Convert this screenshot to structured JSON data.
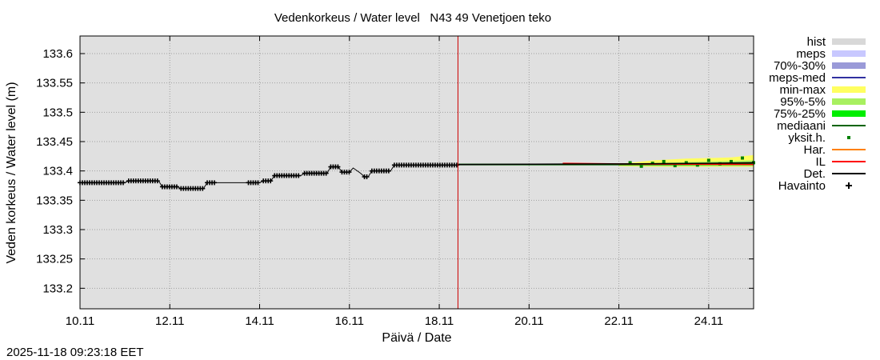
{
  "chart_data": {
    "type": "line",
    "title": "Vedenkorkeus / Water level   N43 49 Venetjoen teko",
    "xlabel": "Päivä / Date",
    "ylabel": "Veden korkeus / Water level (m)",
    "x_range": [
      "2025-11-10",
      "2025-11-25"
    ],
    "ylim": [
      133.165,
      133.63
    ],
    "x_ticks": [
      "10.11",
      "12.11",
      "14.11",
      "16.11",
      "18.11",
      "20.11",
      "22.11",
      "24.11"
    ],
    "y_ticks": [
      "133.6",
      "133.55",
      "133.5",
      "133.45",
      "133.4",
      "133.35",
      "133.3",
      "133.25",
      "133.2"
    ],
    "grid": true,
    "background_color": "#e0e0e0",
    "forecast_start_line": {
      "x": "2025-11-18 10:00",
      "color": "#cc0000"
    },
    "legend_position": "right",
    "legend": [
      {
        "label": "hist",
        "color": "#d8d8d8",
        "style": "band"
      },
      {
        "label": "meps",
        "color": "#c8c8ff",
        "style": "band"
      },
      {
        "label": "70%-30%",
        "color": "#9a9ad8",
        "style": "band"
      },
      {
        "label": "meps-med",
        "color": "#3030a0",
        "style": "line"
      },
      {
        "label": "min-max",
        "color": "#ffff60",
        "style": "band"
      },
      {
        "label": "95%-5%",
        "color": "#a8f060",
        "style": "band"
      },
      {
        "label": "75%-25%",
        "color": "#00ee00",
        "style": "band"
      },
      {
        "label": "mediaani",
        "color": "#006400",
        "style": "line"
      },
      {
        "label": "yksit.h.",
        "color": "#008000",
        "style": "dot"
      },
      {
        "label": "Har.",
        "color": "#ff8000",
        "style": "line"
      },
      {
        "label": "IL",
        "color": "#ff0000",
        "style": "line"
      },
      {
        "label": "Det.",
        "color": "#000000",
        "style": "line"
      },
      {
        "label": "Havainto",
        "color": "#000000",
        "style": "cross"
      }
    ],
    "series": [
      {
        "name": "Havainto",
        "type": "observed",
        "points": [
          [
            "2025-11-10 00:00",
            133.38
          ],
          [
            "2025-11-11 00:00",
            133.38
          ],
          [
            "2025-11-11 02:00",
            133.383
          ],
          [
            "2025-11-11 18:00",
            133.383
          ],
          [
            "2025-11-11 20:00",
            133.373
          ],
          [
            "2025-11-12 04:00",
            133.373
          ],
          [
            "2025-11-12 06:00",
            133.37
          ],
          [
            "2025-11-12 18:00",
            133.37
          ],
          [
            "2025-11-12 20:00",
            133.38
          ],
          [
            "2025-11-13 00:00",
            133.38
          ],
          [
            "2025-11-13 18:00",
            133.38
          ],
          [
            "2025-11-14 00:00",
            133.38
          ],
          [
            "2025-11-14 02:00",
            133.383
          ],
          [
            "2025-11-14 06:00",
            133.383
          ],
          [
            "2025-11-14 08:00",
            133.392
          ],
          [
            "2025-11-14 22:00",
            133.392
          ],
          [
            "2025-11-15 00:00",
            133.396
          ],
          [
            "2025-11-15 12:00",
            133.396
          ],
          [
            "2025-11-15 14:00",
            133.407
          ],
          [
            "2025-11-15 18:00",
            133.407
          ],
          [
            "2025-11-15 20:00",
            133.398
          ],
          [
            "2025-11-16 00:00",
            133.398
          ],
          [
            "2025-11-16 02:00",
            133.405
          ],
          [
            "2025-11-16 06:00",
            133.396
          ],
          [
            "2025-11-16 08:00",
            133.39
          ],
          [
            "2025-11-16 10:00",
            133.39
          ],
          [
            "2025-11-16 12:00",
            133.4
          ],
          [
            "2025-11-16 22:00",
            133.4
          ],
          [
            "2025-11-17 00:00",
            133.41
          ],
          [
            "2025-11-18 10:00",
            133.41
          ]
        ]
      },
      {
        "name": "Det.",
        "type": "line",
        "points": [
          [
            "2025-11-18 10:00",
            133.411
          ],
          [
            "2025-11-22 00:00",
            133.412
          ],
          [
            "2025-11-24 00:00",
            133.413
          ],
          [
            "2025-11-25 00:00",
            133.414
          ]
        ]
      },
      {
        "name": "IL",
        "type": "line",
        "points": [
          [
            "2025-11-20 18:00",
            133.413
          ],
          [
            "2025-11-22 00:00",
            133.412
          ],
          [
            "2025-11-25 00:00",
            133.411
          ]
        ]
      },
      {
        "name": "min-max",
        "type": "band",
        "points": [
          [
            "2025-11-22 00:00",
            133.408,
            133.412
          ],
          [
            "2025-11-22 18:00",
            133.407,
            133.418
          ],
          [
            "2025-11-23 12:00",
            133.407,
            133.421
          ],
          [
            "2025-11-24 12:00",
            133.407,
            133.423
          ],
          [
            "2025-11-25 00:00",
            133.407,
            133.427
          ]
        ]
      },
      {
        "name": "95%-5%",
        "type": "band",
        "points": [
          [
            "2025-11-22 00:00",
            133.409,
            133.411
          ],
          [
            "2025-11-23 00:00",
            133.408,
            133.414
          ],
          [
            "2025-11-24 00:00",
            133.408,
            133.416
          ],
          [
            "2025-11-25 00:00",
            133.408,
            133.418
          ]
        ]
      },
      {
        "name": "75%-25%",
        "type": "band",
        "points": [
          [
            "2025-11-18 10:00",
            133.411,
            133.412
          ],
          [
            "2025-11-22 00:00",
            133.41,
            133.412
          ],
          [
            "2025-11-25 00:00",
            133.41,
            133.414
          ]
        ]
      },
      {
        "name": "mediaani",
        "type": "line",
        "points": [
          [
            "2025-11-18 10:00",
            133.411
          ],
          [
            "2025-11-22 00:00",
            133.411
          ],
          [
            "2025-11-25 00:00",
            133.412
          ]
        ]
      },
      {
        "name": "yksit.h.",
        "type": "dots",
        "points": [
          [
            "2025-11-22 06:00",
            133.414
          ],
          [
            "2025-11-22 12:00",
            133.408
          ],
          [
            "2025-11-22 18:00",
            133.413
          ],
          [
            "2025-11-23 00:00",
            133.416
          ],
          [
            "2025-11-23 06:00",
            133.409
          ],
          [
            "2025-11-23 12:00",
            133.414
          ],
          [
            "2025-11-23 18:00",
            133.41
          ],
          [
            "2025-11-24 00:00",
            133.418
          ],
          [
            "2025-11-24 06:00",
            133.412
          ],
          [
            "2025-11-24 12:00",
            133.416
          ],
          [
            "2025-11-24 18:00",
            133.422
          ],
          [
            "2025-11-25 00:00",
            133.414
          ]
        ]
      }
    ]
  },
  "footer": {
    "timestamp": "2025-11-18 09:23:18 EET"
  }
}
